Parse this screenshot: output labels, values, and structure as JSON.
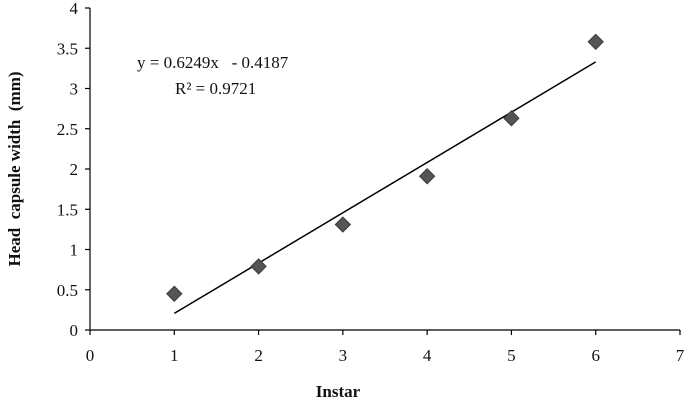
{
  "chart_data": {
    "type": "scatter",
    "xlabel": "Instar",
    "ylabel": "Head  capsule width  (mm)",
    "xlim": [
      0,
      7
    ],
    "ylim": [
      0,
      4
    ],
    "xticks": [
      0,
      1,
      2,
      3,
      4,
      5,
      6,
      7
    ],
    "yticks": [
      0,
      0.5,
      1,
      1.5,
      2,
      2.5,
      3,
      3.5,
      4
    ],
    "xtick_labels": [
      "0",
      "1",
      "2",
      "3",
      "4",
      "5",
      "6",
      "7"
    ],
    "ytick_labels": [
      "0",
      "0.5",
      "1",
      "1.5",
      "2",
      "2.5",
      "3",
      "3.5",
      "4"
    ],
    "grid": false,
    "marker": "diamond",
    "marker_color": "#555555",
    "series": [
      {
        "x": [
          1,
          2,
          3,
          4,
          5,
          6
        ],
        "y": [
          0.45,
          0.79,
          1.31,
          1.91,
          2.63,
          3.58
        ]
      }
    ],
    "trendline": {
      "type": "linear",
      "slope": 0.6249,
      "intercept": -0.4187,
      "x_range": [
        1,
        6
      ],
      "color": "#000000"
    },
    "annotations": {
      "equation": "y = 0.6249x   - 0.4187",
      "r_squared": "R² = 0.9721"
    }
  }
}
